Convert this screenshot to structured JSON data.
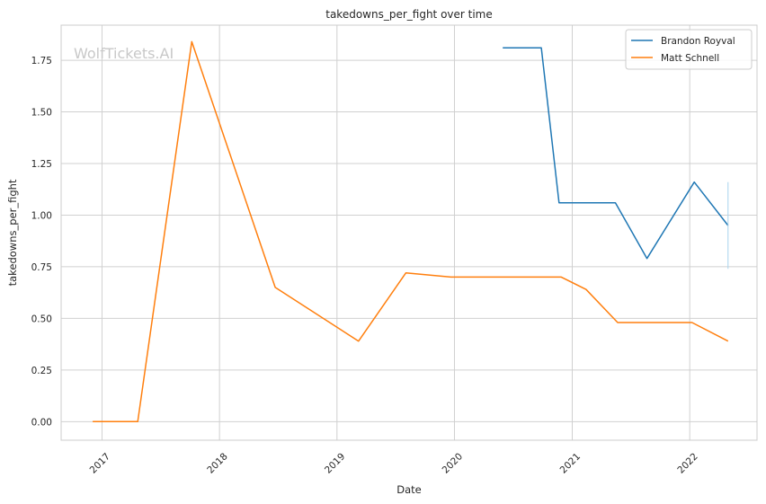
{
  "watermark": "WolfTickets.AI",
  "chart_data": {
    "type": "line",
    "title": "takedowns_per_fight over time",
    "xlabel": "Date",
    "ylabel": "takedowns_per_fight",
    "x_ticks": [
      "2017",
      "2018",
      "2019",
      "2020",
      "2021",
      "2022"
    ],
    "y_ticks": [
      "0.00",
      "0.25",
      "0.50",
      "0.75",
      "1.00",
      "1.25",
      "1.50",
      "1.75"
    ],
    "xlim": [
      "2016-08-27",
      "2022-07-29"
    ],
    "ylim": [
      -0.09,
      1.92
    ],
    "grid": true,
    "legend_position": "top-right",
    "series": [
      {
        "name": "Brandon Royval",
        "color": "#1f77b4",
        "points": [
          {
            "x": "2020-05-30",
            "y": 1.81
          },
          {
            "x": "2020-09-27",
            "y": 1.81
          },
          {
            "x": "2020-11-21",
            "y": 1.06
          },
          {
            "x": "2021-05-15",
            "y": 1.06
          },
          {
            "x": "2021-08-21",
            "y": 0.79
          },
          {
            "x": "2022-01-15",
            "y": 1.16
          },
          {
            "x": "2022-04-30",
            "y": 0.95
          }
        ]
      },
      {
        "name": "Matt Schnell",
        "color": "#ff7f0e",
        "points": [
          {
            "x": "2016-12-03",
            "y": 0.0
          },
          {
            "x": "2017-04-22",
            "y": 0.0
          },
          {
            "x": "2017-10-07",
            "y": 1.84
          },
          {
            "x": "2018-06-23",
            "y": 0.65
          },
          {
            "x": "2019-03-09",
            "y": 0.39
          },
          {
            "x": "2019-08-03",
            "y": 0.72
          },
          {
            "x": "2019-12-21",
            "y": 0.7
          },
          {
            "x": "2020-11-28",
            "y": 0.7
          },
          {
            "x": "2021-02-13",
            "y": 0.64
          },
          {
            "x": "2021-05-22",
            "y": 0.48
          },
          {
            "x": "2022-01-08",
            "y": 0.48
          },
          {
            "x": "2022-04-30",
            "y": 0.39
          }
        ]
      }
    ],
    "annotations": [
      {
        "type": "error-bar",
        "x": "2022-04-30",
        "y_low": 0.74,
        "y_high": 1.16,
        "color": "#a8d3ec"
      }
    ]
  }
}
